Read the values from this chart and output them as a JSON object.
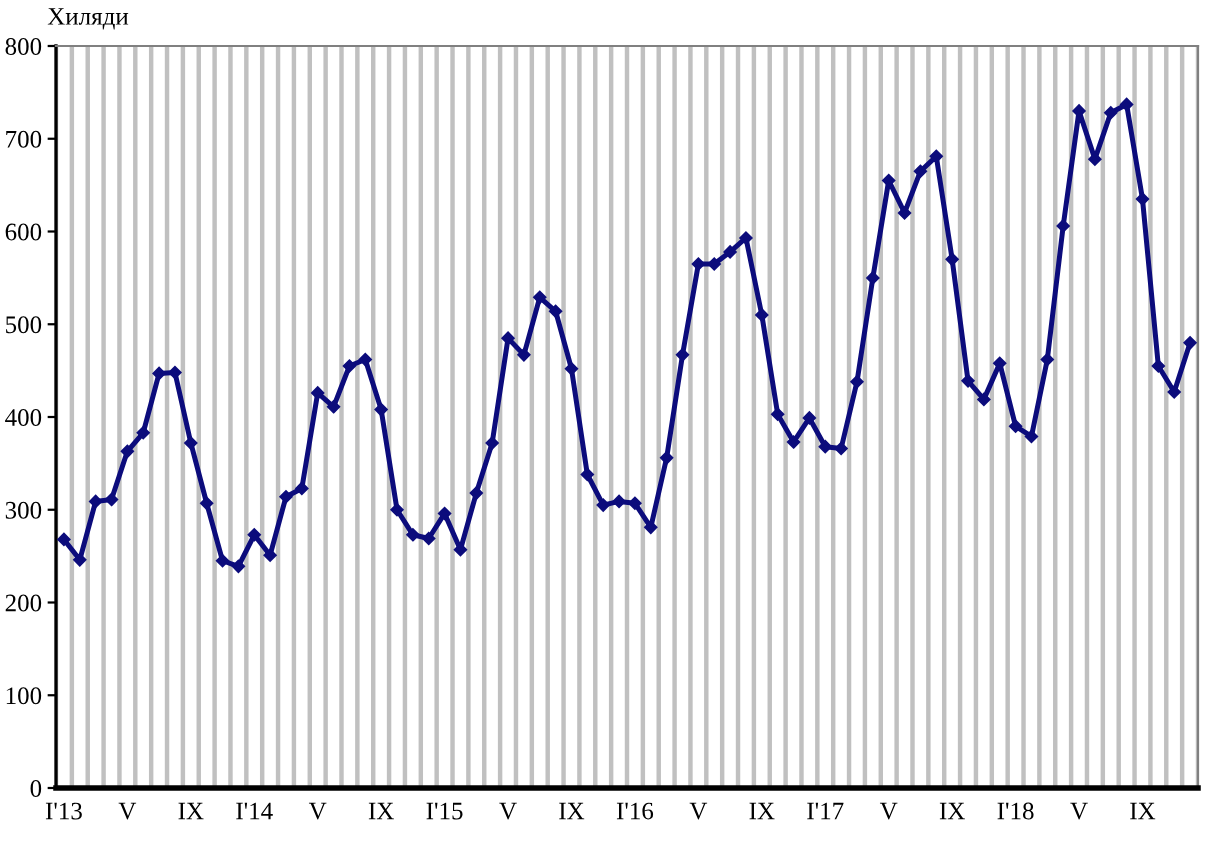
{
  "chart_data": {
    "type": "line",
    "ylabel": "Хиляди",
    "categories": [
      "I'13",
      null,
      null,
      null,
      "V",
      null,
      null,
      null,
      "IX",
      null,
      null,
      null,
      "I'14",
      null,
      null,
      null,
      "V",
      null,
      null,
      null,
      "IX",
      null,
      null,
      null,
      "I'15",
      null,
      null,
      null,
      "V",
      null,
      null,
      null,
      "IX",
      null,
      null,
      null,
      "I'16",
      null,
      null,
      null,
      "V",
      null,
      null,
      null,
      "IX",
      null,
      null,
      null,
      "I'17",
      null,
      null,
      null,
      "V",
      null,
      null,
      null,
      "IX",
      null,
      null,
      null,
      "I'18",
      null,
      null,
      null,
      "V",
      null,
      null,
      null,
      "IX",
      null,
      null,
      null
    ],
    "series": [
      {
        "color": "#0c0c7c",
        "values": [
          268,
          246,
          309,
          311,
          363,
          383,
          447,
          448,
          372,
          307,
          245,
          239,
          273,
          251,
          314,
          323,
          426,
          411,
          455,
          462,
          408,
          300,
          273,
          269,
          296,
          257,
          318,
          372,
          485,
          467,
          529,
          514,
          452,
          338,
          305,
          309,
          307,
          281,
          356,
          467,
          565,
          565,
          578,
          593,
          510,
          403,
          373,
          399,
          368,
          366,
          438,
          550,
          655,
          620,
          665,
          681,
          570,
          439,
          419,
          458,
          390,
          379,
          462,
          606,
          730,
          678,
          728,
          737,
          635,
          455,
          427,
          480
        ]
      }
    ],
    "ylim": [
      0,
      800
    ],
    "yticks": [
      0,
      100,
      200,
      300,
      400,
      500,
      600,
      700,
      800
    ],
    "grid": "x",
    "marker": "diamond",
    "line_style": "solid"
  }
}
